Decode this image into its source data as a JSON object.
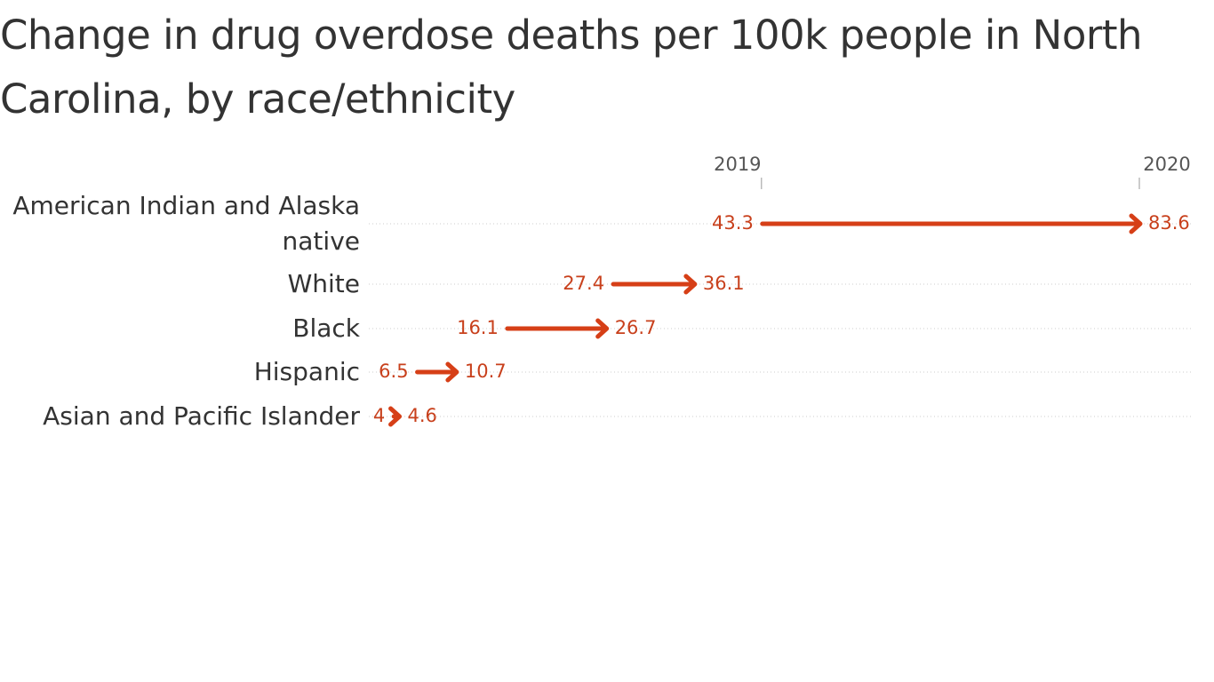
{
  "chart_data": {
    "type": "arrow",
    "title": "Change in drug overdose deaths per 100k people in North Carolina, by race/ethnicity",
    "categories": [
      "American Indian and Alaska native",
      "White",
      "Black",
      "Hispanic",
      "Asian and Pacific Islander"
    ],
    "series": [
      {
        "name": "2019",
        "color": "#d63f17",
        "values": [
          43.3,
          27.4,
          16.1,
          6.5,
          4
        ]
      },
      {
        "name": "2020",
        "color": "#d63f17",
        "values": [
          83.6,
          36.1,
          26.7,
          10.7,
          4.6
        ]
      }
    ]
  }
}
